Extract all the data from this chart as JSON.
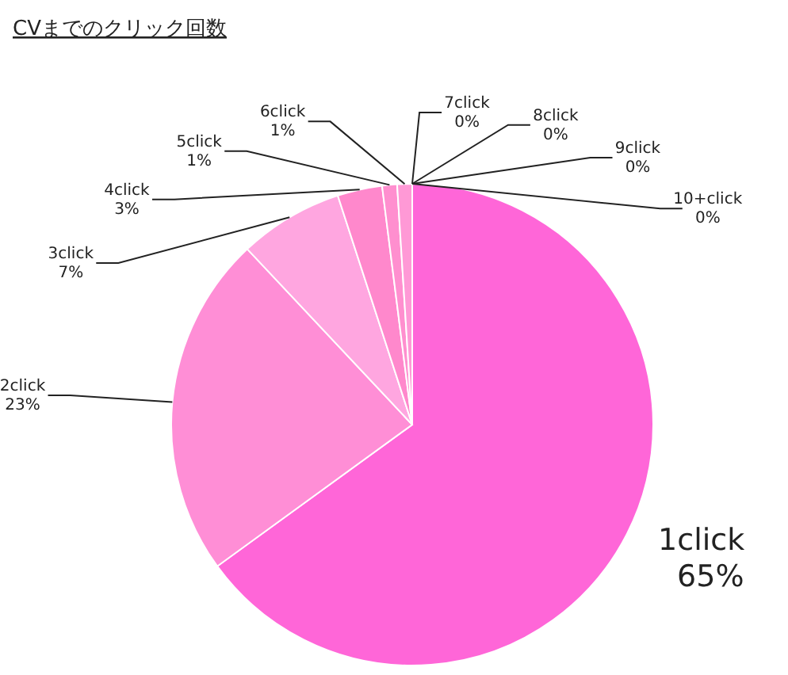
{
  "chart_data": {
    "type": "pie",
    "title": "CVまでのクリック回数",
    "categories": [
      "1click",
      "2click",
      "3click",
      "4click",
      "5click",
      "6click",
      "7click",
      "8click",
      "9click",
      "10+click"
    ],
    "values": [
      65,
      23,
      7,
      3,
      1,
      1,
      0,
      0,
      0,
      0
    ],
    "colors": [
      "#ff66d8",
      "#ff8ed6",
      "#ffa6e0",
      "#ff88cc",
      "#ff8fcf",
      "#ff99d6",
      "#ffb0e0",
      "#ffc0e6",
      "#ffd0ee",
      "#ffe0f4"
    ],
    "value_labels": [
      "65%",
      "23%",
      "7%",
      "3%",
      "1%",
      "1%",
      "0%",
      "0%",
      "0%",
      "0%"
    ]
  }
}
